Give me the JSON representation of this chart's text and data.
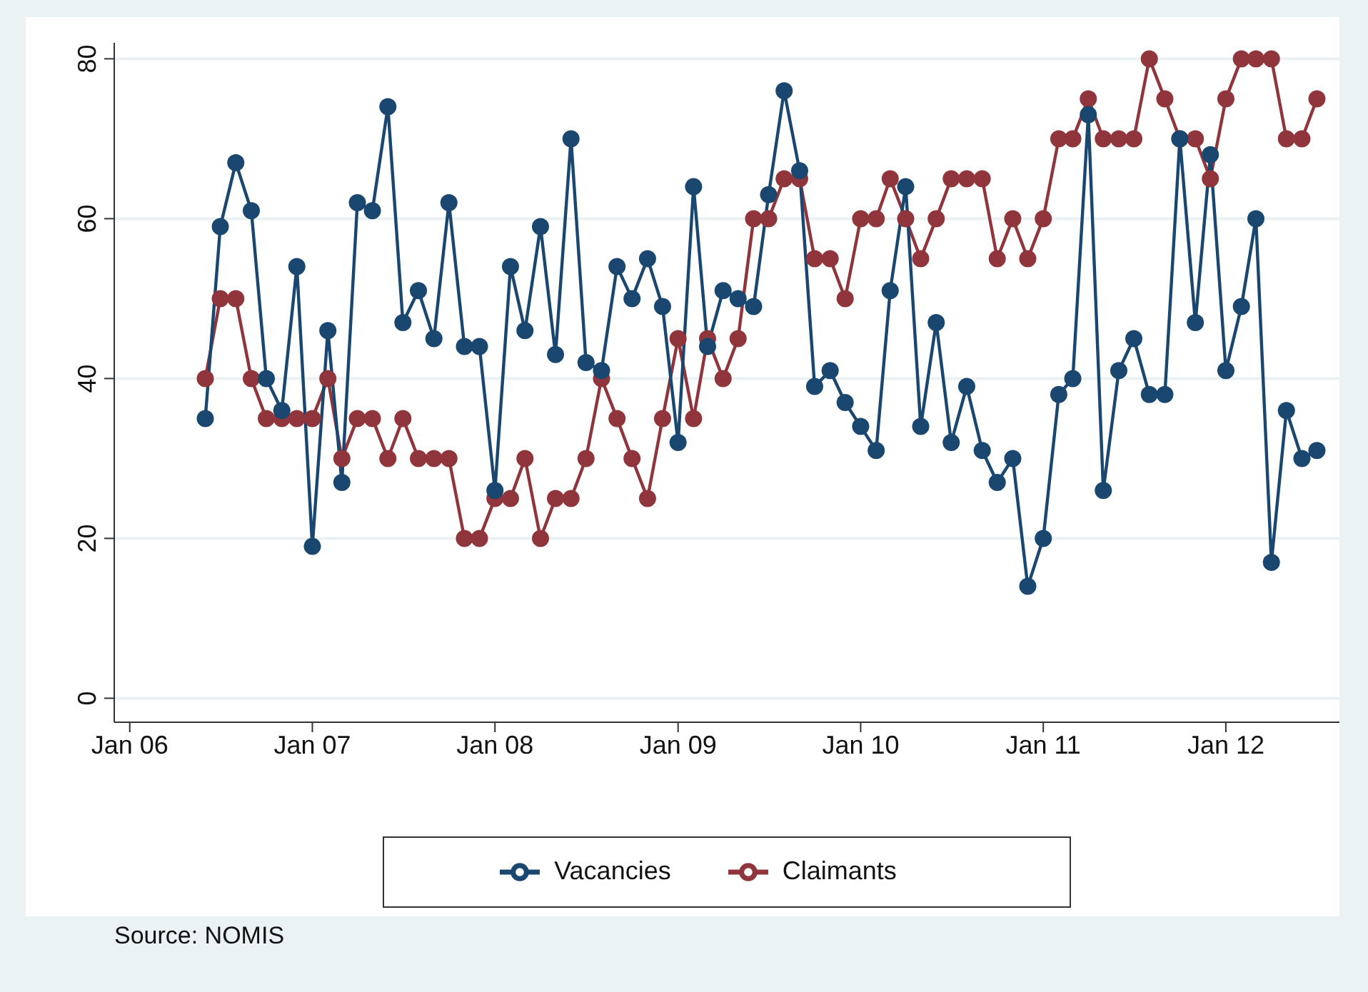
{
  "chart_data": {
    "type": "line",
    "x": [
      "2006-06",
      "2006-07",
      "2006-08",
      "2006-09",
      "2006-10",
      "2006-11",
      "2006-12",
      "2007-01",
      "2007-02",
      "2007-03",
      "2007-04",
      "2007-05",
      "2007-06",
      "2007-07",
      "2007-08",
      "2007-09",
      "2007-10",
      "2007-11",
      "2007-12",
      "2008-01",
      "2008-02",
      "2008-03",
      "2008-04",
      "2008-05",
      "2008-06",
      "2008-07",
      "2008-08",
      "2008-09",
      "2008-10",
      "2008-11",
      "2008-12",
      "2009-01",
      "2009-02",
      "2009-03",
      "2009-04",
      "2009-05",
      "2009-06",
      "2009-07",
      "2009-08",
      "2009-09",
      "2009-10",
      "2009-11",
      "2009-12",
      "2010-01",
      "2010-02",
      "2010-03",
      "2010-04",
      "2010-05",
      "2010-06",
      "2010-07",
      "2010-08",
      "2010-09",
      "2010-10",
      "2010-11",
      "2010-12",
      "2011-01",
      "2011-02",
      "2011-03",
      "2011-04",
      "2011-05",
      "2011-06",
      "2011-07",
      "2011-08",
      "2011-09",
      "2011-10",
      "2011-11",
      "2011-12",
      "2012-01",
      "2012-02",
      "2012-03",
      "2012-04",
      "2012-05",
      "2012-06",
      "2012-07"
    ],
    "series": [
      {
        "name": "Vacancies",
        "color": "#1a476f",
        "values": [
          35,
          59,
          67,
          61,
          40,
          36,
          54,
          19,
          46,
          27,
          62,
          61,
          74,
          47,
          51,
          45,
          62,
          44,
          44,
          26,
          54,
          46,
          59,
          43,
          70,
          42,
          41,
          54,
          50,
          55,
          49,
          32,
          64,
          44,
          51,
          50,
          49,
          63,
          76,
          66,
          39,
          41,
          37,
          34,
          31,
          51,
          64,
          34,
          47,
          32,
          39,
          31,
          27,
          30,
          14,
          20,
          38,
          40,
          73,
          26,
          41,
          45,
          38,
          38,
          70,
          47,
          68,
          41,
          49,
          60,
          17,
          36,
          30,
          31
        ]
      },
      {
        "name": "Claimants",
        "color": "#90353b",
        "values": [
          40,
          50,
          50,
          40,
          35,
          35,
          35,
          35,
          40,
          30,
          35,
          35,
          30,
          35,
          30,
          30,
          30,
          20,
          20,
          25,
          25,
          30,
          20,
          25,
          25,
          30,
          40,
          35,
          30,
          25,
          35,
          45,
          35,
          45,
          40,
          45,
          60,
          60,
          65,
          65,
          55,
          55,
          50,
          60,
          60,
          65,
          60,
          55,
          60,
          65,
          65,
          65,
          55,
          60,
          55,
          60,
          70,
          70,
          75,
          70,
          70,
          70,
          80,
          75,
          70,
          70,
          65,
          75,
          80,
          80,
          80,
          70,
          70,
          75
        ]
      }
    ],
    "xlim": [
      "2005-12-01",
      "2012-08-15"
    ],
    "xticks": [
      {
        "value": "2006-01",
        "label": "Jan 06"
      },
      {
        "value": "2007-01",
        "label": "Jan 07"
      },
      {
        "value": "2008-01",
        "label": "Jan 08"
      },
      {
        "value": "2009-01",
        "label": "Jan 09"
      },
      {
        "value": "2010-01",
        "label": "Jan 10"
      },
      {
        "value": "2011-01",
        "label": "Jan 11"
      },
      {
        "value": "2012-01",
        "label": "Jan 12"
      }
    ],
    "ylim": [
      -3,
      82
    ],
    "yticks": [
      0,
      20,
      40,
      60,
      80
    ],
    "grid": "y",
    "legend": "bottom",
    "marker": "circle",
    "line_style": "solid",
    "annotations": [
      "Source: NOMIS"
    ]
  }
}
